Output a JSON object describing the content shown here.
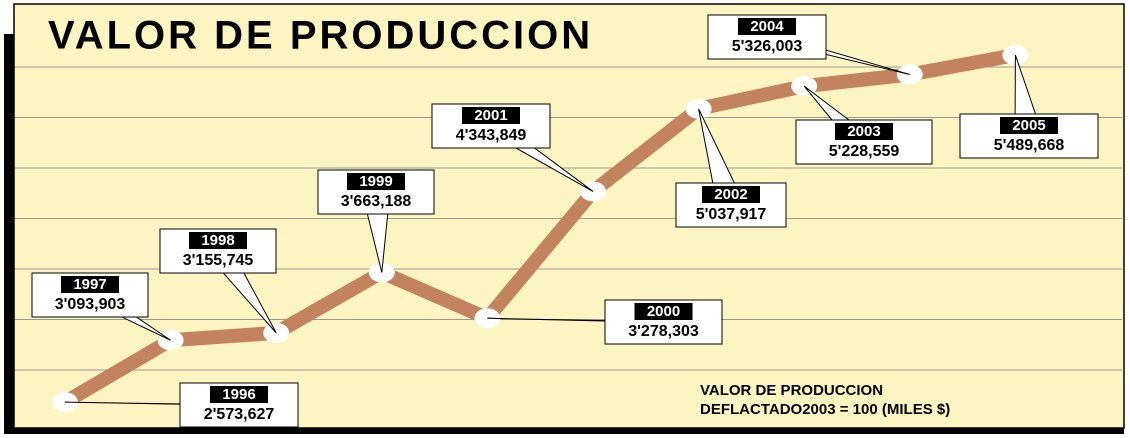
{
  "chart_data": {
    "type": "line",
    "title": "VALOR DE PRODUCCION",
    "annotations": [
      "VALOR DE PRODUCCION",
      "DEFLACTADO2003 = 100 (MILES $)"
    ],
    "categories": [
      "1996",
      "1997",
      "1998",
      "1999",
      "2000",
      "2001",
      "2002",
      "2003",
      "2004",
      "2005"
    ],
    "values": [
      2573627,
      3093903,
      3155745,
      3663188,
      3278303,
      4343849,
      5037917,
      5228559,
      5326003,
      5489668
    ],
    "value_labels": [
      "2'573,627",
      "3'093,903",
      "3'155,745",
      "3'663,188",
      "3'278,303",
      "4'343,849",
      "5'037,917",
      "5'228,559",
      "5'326,003",
      "5'489,668"
    ],
    "color": "#c4835f",
    "ylim": [
      2340000,
      5700000
    ],
    "grid": true
  }
}
